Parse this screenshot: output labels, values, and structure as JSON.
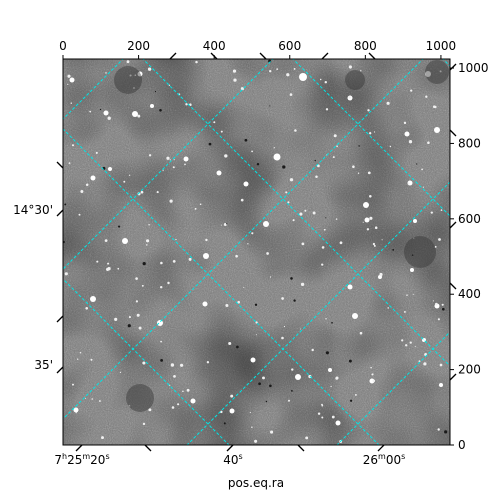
{
  "figure": {
    "xlabel": "pos.eq.ra",
    "grid_color": "#00e5e5",
    "frame_color": "#000000"
  },
  "chart_data": {
    "type": "image",
    "description_pixels": {
      "x_range": [
        0,
        1024
      ],
      "y_range": [
        0,
        1024
      ],
      "x_ticks": [
        "0",
        "200",
        "400",
        "600",
        "800",
        "1000"
      ],
      "y_ticks": [
        "0",
        "200",
        "400",
        "600",
        "800",
        "1000"
      ]
    },
    "world_axes": {
      "ra_ticks": [
        {
          "h": "7",
          "m": "25",
          "s": "20"
        },
        {
          "s": "40"
        },
        {
          "m": "26",
          "s": "00"
        }
      ],
      "dec_ticks": [
        "14°30'",
        "35'"
      ]
    },
    "grid": true
  }
}
